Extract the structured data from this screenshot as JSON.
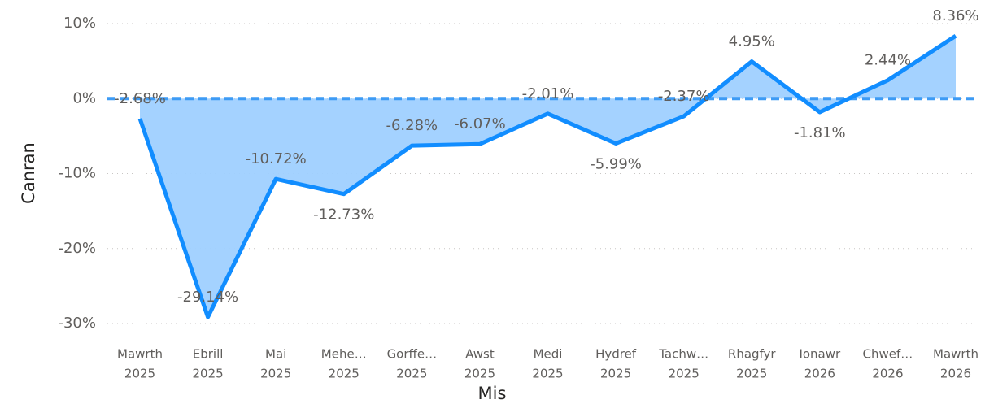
{
  "chart_data": {
    "type": "area",
    "x_label": "Mis",
    "y_label": "Canran",
    "categories": [
      [
        "Mawrth",
        "2025"
      ],
      [
        "Ebrill",
        "2025"
      ],
      [
        "Mai",
        "2025"
      ],
      [
        "Mehe…",
        "2025"
      ],
      [
        "Gorffe…",
        "2025"
      ],
      [
        "Awst",
        "2025"
      ],
      [
        "Medi",
        "2025"
      ],
      [
        "Hydref",
        "2025"
      ],
      [
        "Tachw…",
        "2025"
      ],
      [
        "Rhagfyr",
        "2025"
      ],
      [
        "Ionawr",
        "2026"
      ],
      [
        "Chwef…",
        "2026"
      ],
      [
        "Mawrth",
        "2026"
      ]
    ],
    "values": [
      -2.68,
      -29.14,
      -10.72,
      -12.73,
      -6.28,
      -6.07,
      -2.01,
      -5.99,
      -2.37,
      4.95,
      -1.81,
      2.44,
      8.36
    ],
    "value_labels": [
      "-2.68%",
      "-29.14%",
      "-10.72%",
      "-12.73%",
      "-6.28%",
      "-6.07%",
      "-2.01%",
      "-5.99%",
      "-2.37%",
      "4.95%",
      "-1.81%",
      "2.44%",
      "8.36%"
    ],
    "color": "#118dff",
    "area_color": "#9fd0ff",
    "reference_line": 0,
    "reference_color": "#3d9bf5",
    "ylim": [
      -30,
      10
    ],
    "yticks": [
      {
        "value": -30,
        "label": "-30%"
      },
      {
        "value": -20,
        "label": "-20%"
      },
      {
        "value": -10,
        "label": "-10%"
      },
      {
        "value": 0,
        "label": "0%"
      },
      {
        "value": 10,
        "label": "10%"
      }
    ],
    "grid": true
  }
}
